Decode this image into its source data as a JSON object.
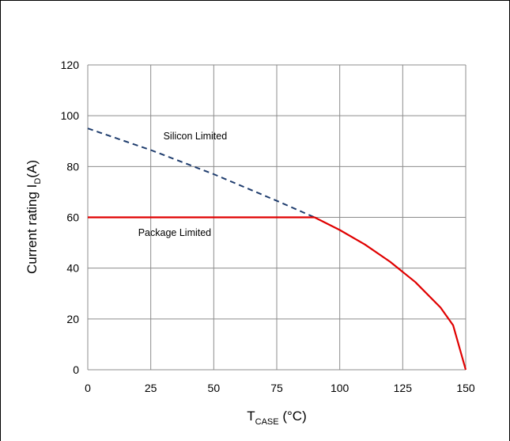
{
  "chart_data": {
    "type": "line",
    "x_axis": {
      "label_main": "T",
      "label_sub": "CASE",
      "label_unit": " (°C)",
      "range": [
        0,
        150
      ],
      "ticks": [
        0,
        25,
        50,
        75,
        100,
        125,
        150
      ]
    },
    "y_axis": {
      "label_main": "Current rating I",
      "label_sub": "D",
      "label_unit": "(A)",
      "range": [
        0,
        120
      ],
      "ticks": [
        0,
        20,
        40,
        60,
        80,
        100,
        120
      ]
    },
    "grid": true,
    "series": [
      {
        "name": "Silicon Limited",
        "style": "dashed",
        "color": "#1f3d6e",
        "points": [
          [
            0,
            95
          ],
          [
            25,
            86.5
          ],
          [
            50,
            77
          ],
          [
            75,
            66.5
          ],
          [
            90,
            60
          ]
        ]
      },
      {
        "name": "Package Limited",
        "style": "solid",
        "color": "#e00000",
        "points": [
          [
            0,
            60
          ],
          [
            90,
            60
          ],
          [
            100,
            55
          ],
          [
            110,
            49.3
          ],
          [
            120,
            42.5
          ],
          [
            130,
            34.5
          ],
          [
            140,
            24.5
          ],
          [
            145,
            17.5
          ],
          [
            150,
            0
          ]
        ]
      }
    ],
    "annotations": [
      {
        "text": "Silicon Limited",
        "x": 30,
        "y": 92
      },
      {
        "text": "Package Limited",
        "x": 20,
        "y": 54
      }
    ]
  }
}
